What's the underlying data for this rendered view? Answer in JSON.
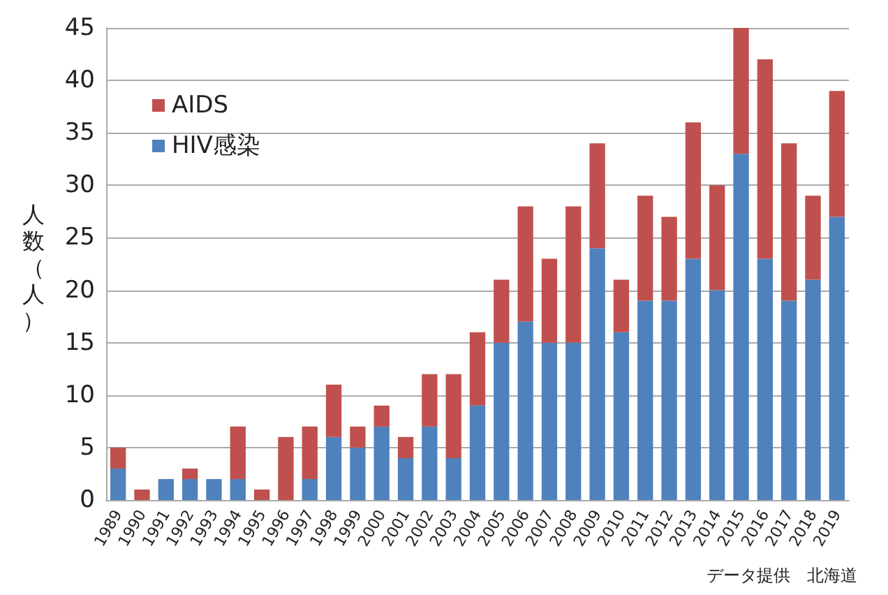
{
  "chart_data": {
    "type": "bar",
    "stacked": true,
    "ylabel": "人数（人）",
    "categories": [
      "1989",
      "1990",
      "1991",
      "1992",
      "1993",
      "1994",
      "1995",
      "1996",
      "1997",
      "1998",
      "1999",
      "2000",
      "2001",
      "2002",
      "2003",
      "2004",
      "2005",
      "2006",
      "2007",
      "2008",
      "2009",
      "2010",
      "2011",
      "2012",
      "2013",
      "2014",
      "2015",
      "2016",
      "2017",
      "2018",
      "2019"
    ],
    "series": [
      {
        "name": "HIV感染",
        "color": "#4f81bd",
        "values": [
          3,
          0,
          2,
          2,
          2,
          2,
          0,
          0,
          2,
          6,
          5,
          7,
          4,
          7,
          4,
          9,
          15,
          17,
          15,
          15,
          24,
          16,
          19,
          19,
          23,
          20,
          33,
          23,
          19,
          21,
          27
        ]
      },
      {
        "name": "AIDS",
        "color": "#c0504d",
        "values": [
          2,
          1,
          0,
          1,
          0,
          5,
          1,
          6,
          5,
          5,
          2,
          2,
          2,
          5,
          8,
          7,
          6,
          11,
          8,
          13,
          10,
          5,
          10,
          8,
          13,
          10,
          12,
          19,
          15,
          8,
          12
        ]
      }
    ],
    "ylim": [
      0,
      45
    ],
    "yticks": [
      0,
      5,
      10,
      15,
      20,
      25,
      30,
      35,
      40,
      45
    ],
    "grid": "y",
    "legend": "top left",
    "annotations": [
      "データ提供　北海道"
    ]
  }
}
